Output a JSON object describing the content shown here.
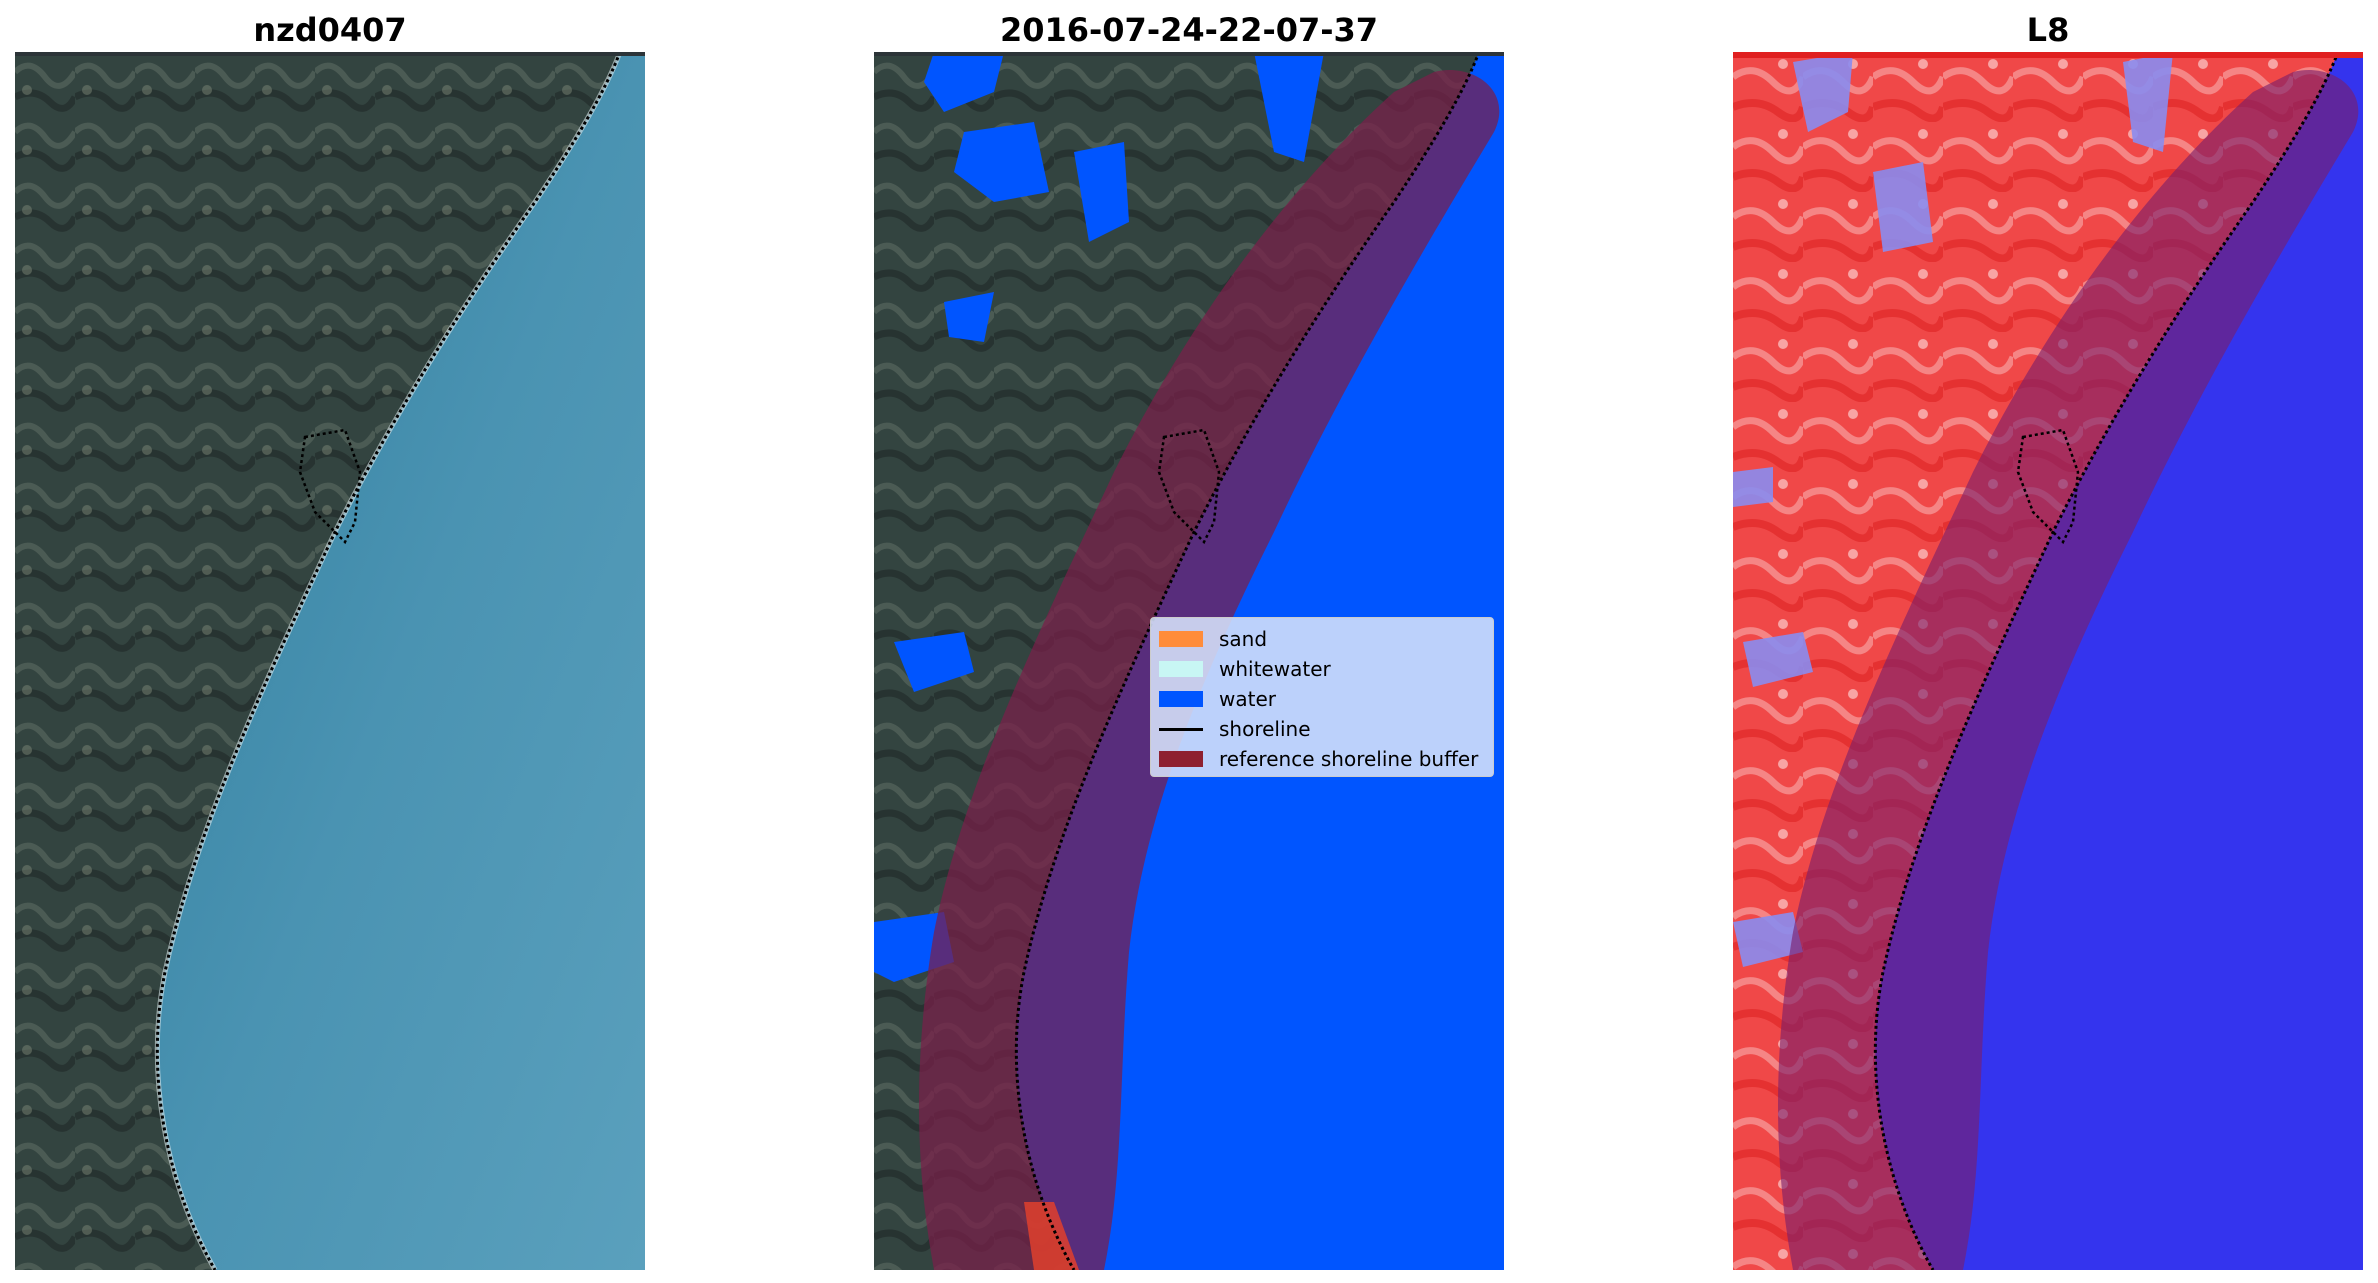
{
  "panels": [
    {
      "title": "nzd0407"
    },
    {
      "title": "2016-07-24-22-07-37"
    },
    {
      "title": "L8"
    }
  ],
  "legend": {
    "placement": "center-right",
    "items": [
      {
        "label": "sand",
        "kind": "patch",
        "color": "#ff8c3a"
      },
      {
        "label": "whitewater",
        "kind": "patch",
        "color": "#c8f6f4"
      },
      {
        "label": "water",
        "kind": "patch",
        "color": "#0055ff"
      },
      {
        "label": "shoreline",
        "kind": "line",
        "color": "#000000"
      },
      {
        "label": "reference shoreline buffer",
        "kind": "patch",
        "color": "#8e2030"
      }
    ]
  },
  "colors": {
    "land_dark": "#2f3b3a",
    "land_light": "#6f7a70",
    "sea_rgb": "#3f8aa8",
    "classified_water": "#0055ff",
    "buffer": "#7a1f4a",
    "index_red": "#f04040",
    "index_blue": "#3434ee"
  }
}
